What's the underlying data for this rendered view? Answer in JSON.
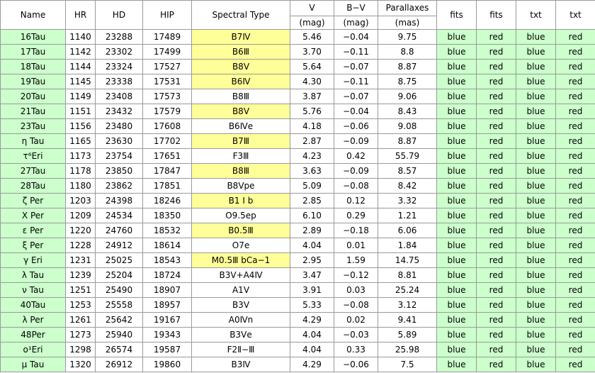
{
  "headers": {
    "name": "Name",
    "hr": "HR",
    "hd": "HD",
    "hip": "HIP",
    "spectral": "Spectral Type",
    "v": "V",
    "bv": "B−V",
    "parallax": "Parallaxes",
    "fits1": "fits",
    "fits2": "fits",
    "txt1": "txt",
    "txt2": "txt"
  },
  "units": {
    "v": "(mag)",
    "bv": "(mag)",
    "parallax": "(mas)"
  },
  "colors": {
    "green": "#ccffcc",
    "yellow": "#ffff99",
    "border": "#9a9a9a"
  },
  "rows": [
    {
      "name": "16Tau",
      "hr": "1140",
      "hd": "23288",
      "hip": "17489",
      "sp": "B7Ⅳ",
      "sp_hl": true,
      "v": "5.46",
      "bv": "−0.04",
      "par": "9.75",
      "f1": "blue",
      "f2": "red",
      "t1": "blue",
      "t2": "red"
    },
    {
      "name": "17Tau",
      "hr": "1142",
      "hd": "23302",
      "hip": "17499",
      "sp": "B6Ⅲ",
      "sp_hl": true,
      "v": "3.70",
      "bv": "−0.11",
      "par": "8.8",
      "f1": "blue",
      "f2": "red",
      "t1": "blue",
      "t2": "red"
    },
    {
      "name": "18Tau",
      "hr": "1144",
      "hd": "23324",
      "hip": "17527",
      "sp": "B8Ⅴ",
      "sp_hl": true,
      "v": "5.64",
      "bv": "−0.07",
      "par": "8.87",
      "f1": "blue",
      "f2": "red",
      "t1": "blue",
      "t2": "red"
    },
    {
      "name": "19Tau",
      "hr": "1145",
      "hd": "23338",
      "hip": "17531",
      "sp": "B6Ⅳ",
      "sp_hl": true,
      "v": "4.30",
      "bv": "−0.11",
      "par": "8.75",
      "f1": "blue",
      "f2": "red",
      "t1": "blue",
      "t2": "red"
    },
    {
      "name": "20Tau",
      "hr": "1149",
      "hd": "23408",
      "hip": "17573",
      "sp": "B8Ⅲ",
      "sp_hl": false,
      "v": "3.87",
      "bv": "−0.07",
      "par": "9.06",
      "f1": "blue",
      "f2": "red",
      "t1": "blue",
      "t2": "red"
    },
    {
      "name": "21Tau",
      "hr": "1151",
      "hd": "23432",
      "hip": "17579",
      "sp": "B8Ⅴ",
      "sp_hl": true,
      "v": "5.76",
      "bv": "−0.04",
      "par": "8.43",
      "f1": "blue",
      "f2": "red",
      "t1": "blue",
      "t2": "red"
    },
    {
      "name": "23Tau",
      "hr": "1156",
      "hd": "23480",
      "hip": "17608",
      "sp": "B6Ⅳe",
      "sp_hl": false,
      "v": "4.18",
      "bv": "−0.06",
      "par": "9.08",
      "f1": "blue",
      "f2": "red",
      "t1": "blue",
      "t2": "red"
    },
    {
      "name": "η Tau",
      "hr": "1165",
      "hd": "23630",
      "hip": "17702",
      "sp": "B7Ⅲ",
      "sp_hl": true,
      "v": "2.87",
      "bv": "−0.09",
      "par": "8.87",
      "f1": "blue",
      "f2": "red",
      "t1": "blue",
      "t2": "red"
    },
    {
      "name": "τ⁶Eri",
      "hr": "1173",
      "hd": "23754",
      "hip": "17651",
      "sp": "F3Ⅲ",
      "sp_hl": false,
      "v": "4.23",
      "bv": "0.42",
      "par": "55.79",
      "f1": "blue",
      "f2": "red",
      "t1": "blue",
      "t2": "red"
    },
    {
      "name": "27Tau",
      "hr": "1178",
      "hd": "23850",
      "hip": "17847",
      "sp": "B8Ⅲ",
      "sp_hl": true,
      "v": "3.63",
      "bv": "−0.09",
      "par": "8.57",
      "f1": "blue",
      "f2": "red",
      "t1": "blue",
      "t2": "red"
    },
    {
      "name": "28Tau",
      "hr": "1180",
      "hd": "23862",
      "hip": "17851",
      "sp": "B8Ⅴpe",
      "sp_hl": false,
      "v": "5.09",
      "bv": "−0.08",
      "par": "8.42",
      "f1": "blue",
      "f2": "red",
      "t1": "blue",
      "t2": "red"
    },
    {
      "name": "ζ Per",
      "hr": "1203",
      "hd": "24398",
      "hip": "18246",
      "sp": "B1 Ⅰ b",
      "sp_hl": true,
      "v": "2.85",
      "bv": "0.12",
      "par": "3.32",
      "f1": "blue",
      "f2": "red",
      "t1": "blue",
      "t2": "red"
    },
    {
      "name": "X Per",
      "hr": "1209",
      "hd": "24534",
      "hip": "18350",
      "sp": "O9.5ep",
      "sp_hl": false,
      "v": "6.10",
      "bv": "0.29",
      "par": "1.21",
      "f1": "blue",
      "f2": "red",
      "t1": "blue",
      "t2": "red"
    },
    {
      "name": "ε Per",
      "hr": "1220",
      "hd": "24760",
      "hip": "18532",
      "sp": "B0.5Ⅲ",
      "sp_hl": true,
      "v": "2.89",
      "bv": "−0.18",
      "par": "6.06",
      "f1": "blue",
      "f2": "red",
      "t1": "blue",
      "t2": "red"
    },
    {
      "name": "ξ Per",
      "hr": "1228",
      "hd": "24912",
      "hip": "18614",
      "sp": "O7e",
      "sp_hl": false,
      "v": "4.04",
      "bv": "0.01",
      "par": "1.84",
      "f1": "blue",
      "f2": "red",
      "t1": "blue",
      "t2": "red"
    },
    {
      "name": "γ Eri",
      "hr": "1231",
      "hd": "25025",
      "hip": "18543",
      "sp": "M0.5Ⅲ bCa−1",
      "sp_hl": true,
      "v": "2.95",
      "bv": "1.59",
      "par": "14.75",
      "f1": "blue",
      "f2": "red",
      "t1": "blue",
      "t2": "red"
    },
    {
      "name": "λ Tau",
      "hr": "1239",
      "hd": "25204",
      "hip": "18724",
      "sp": "B3Ⅴ+A4Ⅳ",
      "sp_hl": false,
      "v": "3.47",
      "bv": "−0.12",
      "par": "8.81",
      "f1": "blue",
      "f2": "red",
      "t1": "blue",
      "t2": "red"
    },
    {
      "name": "ν Tau",
      "hr": "1251",
      "hd": "25490",
      "hip": "18907",
      "sp": "A1Ⅴ",
      "sp_hl": false,
      "v": "3.91",
      "bv": "0.03",
      "par": "25.24",
      "f1": "blue",
      "f2": "red",
      "t1": "blue",
      "t2": "red"
    },
    {
      "name": "40Tau",
      "hr": "1253",
      "hd": "25558",
      "hip": "18957",
      "sp": "B3Ⅴ",
      "sp_hl": false,
      "v": "5.33",
      "bv": "−0.08",
      "par": "3.12",
      "f1": "blue",
      "f2": "red",
      "t1": "blue",
      "t2": "red"
    },
    {
      "name": "λ Per",
      "hr": "1261",
      "hd": "25642",
      "hip": "19167",
      "sp": "A0Ⅳn",
      "sp_hl": false,
      "v": "4.29",
      "bv": "0.02",
      "par": "9.41",
      "f1": "blue",
      "f2": "red",
      "t1": "blue",
      "t2": "red"
    },
    {
      "name": "48Per",
      "hr": "1273",
      "hd": "25940",
      "hip": "19343",
      "sp": "B3Ⅴe",
      "sp_hl": false,
      "v": "4.04",
      "bv": "−0.03",
      "par": "5.89",
      "f1": "blue",
      "f2": "red",
      "t1": "blue",
      "t2": "red"
    },
    {
      "name": "ο¹Eri",
      "hr": "1298",
      "hd": "26574",
      "hip": "19587",
      "sp": "F2Ⅱ−Ⅲ",
      "sp_hl": false,
      "v": "4.04",
      "bv": "0.33",
      "par": "25.98",
      "f1": "blue",
      "f2": "red",
      "t1": "blue",
      "t2": "red"
    },
    {
      "name": "μ Tau",
      "hr": "1320",
      "hd": "26912",
      "hip": "19860",
      "sp": "B3Ⅳ",
      "sp_hl": false,
      "v": "4.29",
      "bv": "−0.06",
      "par": "7.5",
      "f1": "blue",
      "f2": "red",
      "t1": "blue",
      "t2": "red"
    }
  ]
}
